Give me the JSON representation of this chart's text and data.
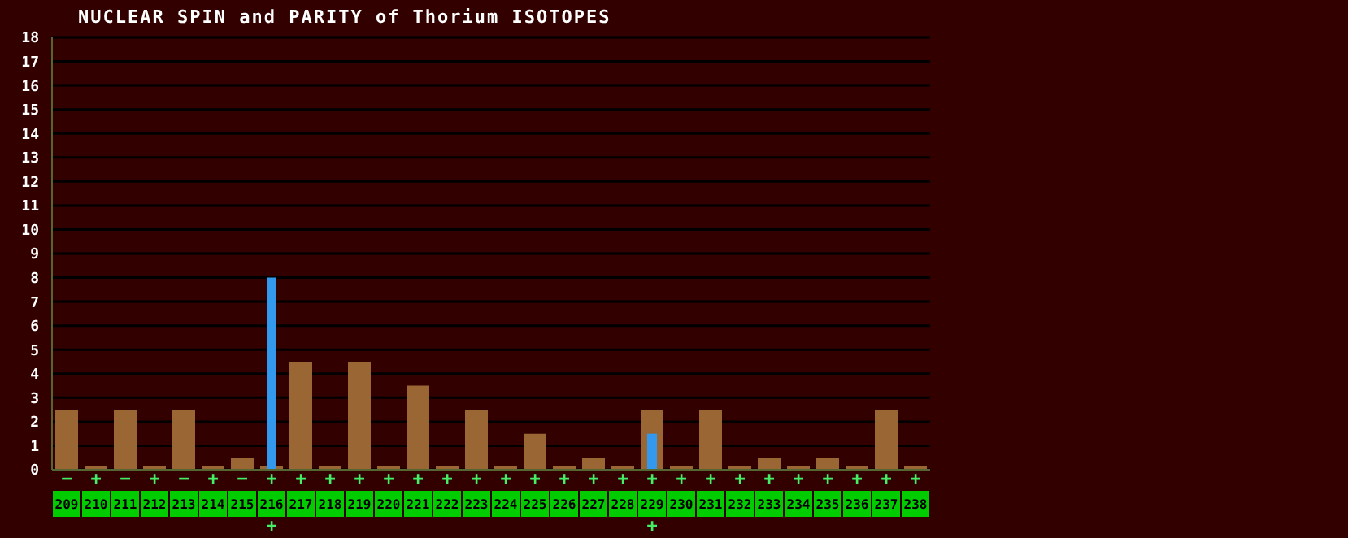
{
  "chart_data": {
    "type": "bar",
    "title": "NUCLEAR SPIN and PARITY of Thorium ISOTOPES",
    "categories": [
      "209",
      "210",
      "211",
      "212",
      "213",
      "214",
      "215",
      "216",
      "217",
      "218",
      "219",
      "220",
      "221",
      "222",
      "223",
      "224",
      "225",
      "226",
      "227",
      "228",
      "229",
      "230",
      "231",
      "232",
      "233",
      "234",
      "235",
      "236",
      "237",
      "238"
    ],
    "series": [
      {
        "color": "#9a6634",
        "values": [
          2.5,
          0,
          2.5,
          0,
          2.5,
          0,
          0.5,
          0,
          4.5,
          0,
          4.5,
          0,
          3.5,
          0,
          2.5,
          0,
          1.5,
          0,
          0.5,
          0,
          2.5,
          0,
          2.5,
          0,
          0.5,
          0,
          0.5,
          0,
          2.5,
          0
        ],
        "value_labels": [
          "−",
          "+",
          "−",
          "+",
          "−",
          "+",
          "−",
          "+",
          "+",
          "+",
          "+",
          "+",
          "+",
          "+",
          "+",
          "+",
          "+",
          "+",
          "+",
          "+",
          "+",
          "+",
          "+",
          "+",
          "+",
          "+",
          "+",
          "+",
          "+",
          "+"
        ]
      },
      {
        "color": "#3399ee",
        "values": [
          null,
          null,
          null,
          null,
          null,
          null,
          null,
          8,
          null,
          null,
          null,
          null,
          null,
          null,
          null,
          null,
          null,
          null,
          null,
          null,
          1.5,
          null,
          null,
          null,
          null,
          null,
          null,
          null,
          null,
          null
        ],
        "value_labels": [
          null,
          null,
          null,
          null,
          null,
          null,
          null,
          "+",
          null,
          null,
          null,
          null,
          null,
          null,
          null,
          null,
          null,
          null,
          null,
          null,
          "+",
          null,
          null,
          null,
          null,
          null,
          null,
          null,
          null,
          null
        ]
      }
    ],
    "ylim": [
      0,
      18
    ],
    "yticks": [
      0,
      1,
      2,
      3,
      4,
      5,
      6,
      7,
      8,
      9,
      10,
      11,
      12,
      13,
      14,
      15,
      16,
      17,
      18
    ],
    "grid": "y",
    "legend": false
  }
}
